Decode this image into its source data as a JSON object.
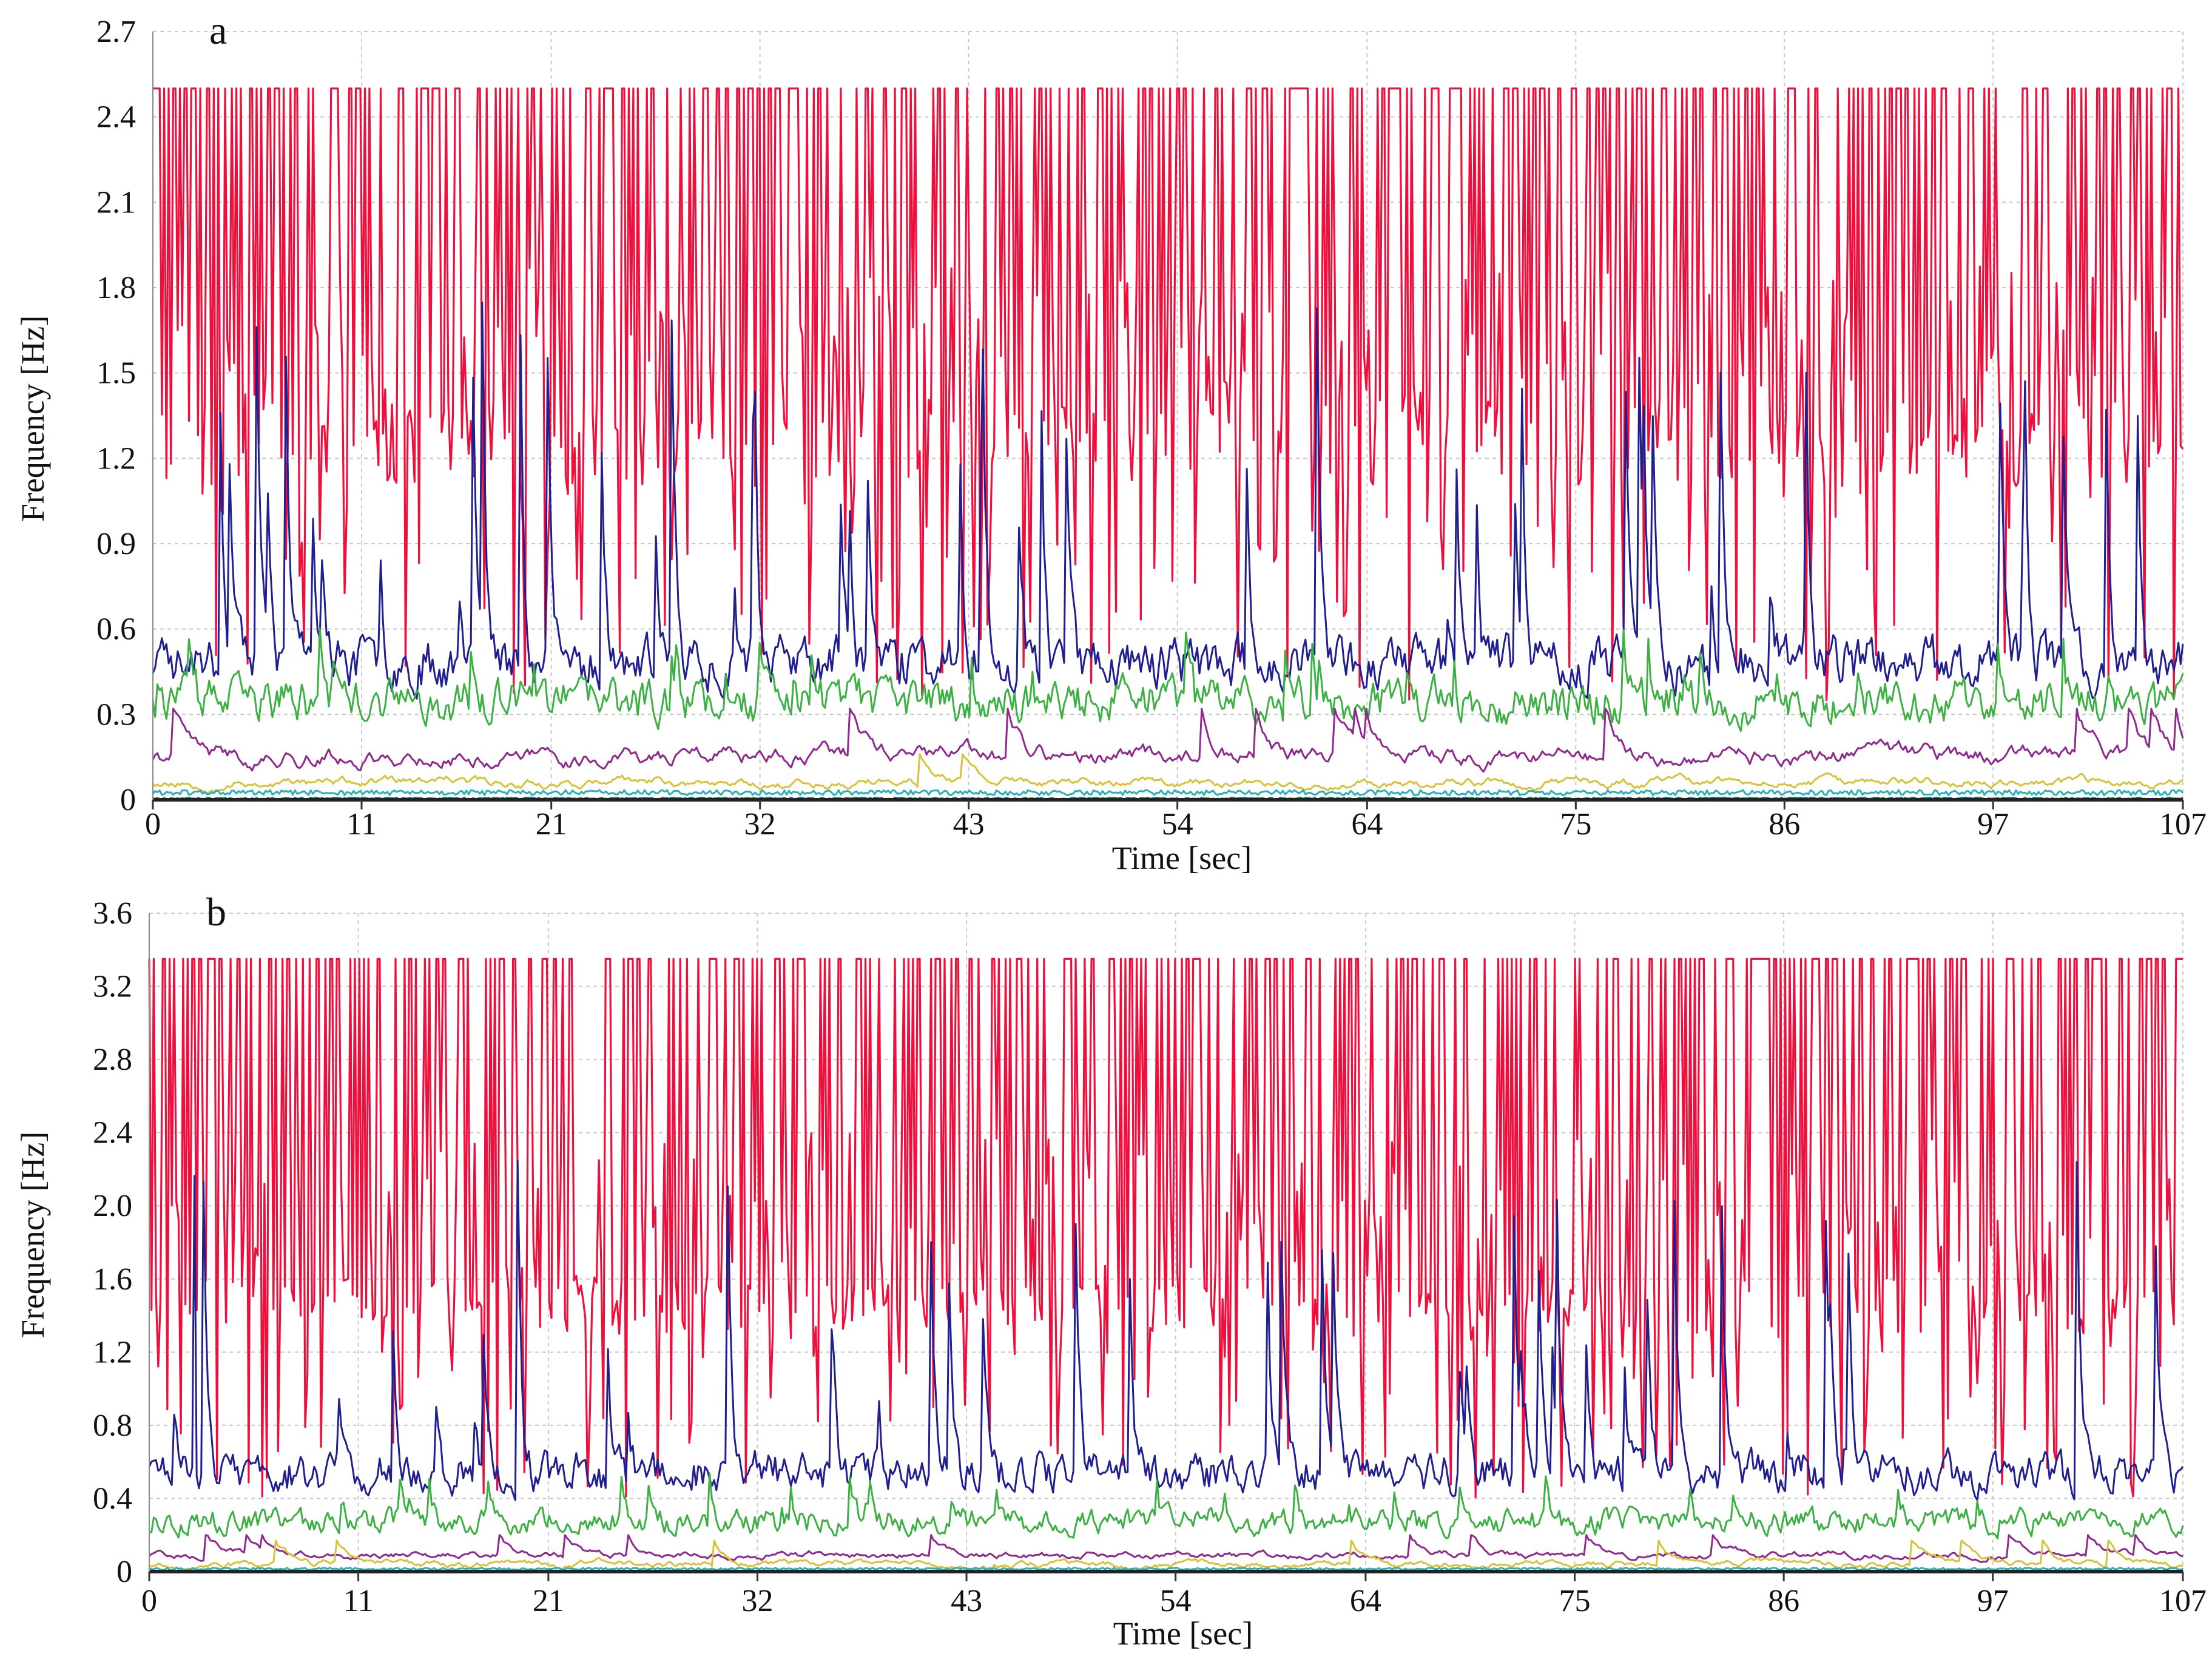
{
  "figure": {
    "panels": [
      "a",
      "b"
    ]
  },
  "chart_data": [
    {
      "panel_label": "a",
      "type": "line",
      "title": "",
      "xlabel": "Time [sec]",
      "ylabel": "Frequency [Hz]",
      "xlim": [
        0,
        107
      ],
      "ylim": [
        0,
        2.7
      ],
      "xticks": [
        "0",
        "11",
        "21",
        "32",
        "43",
        "54",
        "64",
        "75",
        "86",
        "97",
        "107"
      ],
      "yticks": [
        "0",
        "0.3",
        "0.6",
        "0.9",
        "1.2",
        "1.5",
        "1.8",
        "2.1",
        "2.4",
        "2.7"
      ],
      "grid": true,
      "legend": "none",
      "series": [
        {
          "name": "red",
          "color": "#ee0f3c",
          "baseline": 1.25,
          "cap": 2.5,
          "floor": 0.35,
          "style": "spikes",
          "seed": 11
        },
        {
          "name": "blue",
          "color": "#1f1f8f",
          "baseline": 0.45,
          "cap": 1.75,
          "floor": 0.25,
          "style": "noisy",
          "seed": 23
        },
        {
          "name": "green",
          "color": "#3cb043",
          "baseline": 0.32,
          "cap": 0.62,
          "floor": 0.15,
          "style": "noisy",
          "seed": 37
        },
        {
          "name": "purple",
          "color": "#8e2a8e",
          "baseline": 0.15,
          "cap": 0.32,
          "floor": 0.04,
          "style": "smooth",
          "seed": 41
        },
        {
          "name": "yellow",
          "color": "#d9c23a",
          "baseline": 0.06,
          "cap": 0.16,
          "floor": 0.01,
          "style": "smooth",
          "seed": 53
        },
        {
          "name": "cyan",
          "color": "#2ab0b8",
          "baseline": 0.025,
          "cap": 0.05,
          "floor": 0.005,
          "style": "flat",
          "seed": 61
        },
        {
          "name": "teal",
          "color": "#1a6f6f",
          "baseline": 0.005,
          "cap": 0.012,
          "floor": 0.0,
          "style": "flat",
          "seed": 67
        }
      ]
    },
    {
      "panel_label": "b",
      "type": "line",
      "title": "",
      "xlabel": "Time [sec]",
      "ylabel": "Frequency [Hz]",
      "xlim": [
        0,
        107
      ],
      "ylim": [
        0,
        3.6
      ],
      "ytick_values": [
        0,
        0.4,
        0.8,
        1.2,
        1.6,
        2.0,
        2.4,
        2.8,
        3.2,
        3.6
      ],
      "xticks": [
        "0",
        "11",
        "21",
        "32",
        "43",
        "54",
        "64",
        "75",
        "86",
        "97",
        "107"
      ],
      "yticks": [
        "0",
        "0.4",
        "0.8",
        "1.2",
        "1.6",
        "2.0",
        "2.4",
        "2.8",
        "3.2",
        "3.6"
      ],
      "grid": true,
      "legend": "none",
      "series": [
        {
          "name": "red",
          "color": "#ee0f3c",
          "baseline": 1.45,
          "cap": 3.35,
          "floor": 0.4,
          "style": "spikes",
          "seed": 71
        },
        {
          "name": "blue",
          "color": "#1f1f8f",
          "baseline": 0.5,
          "cap": 2.3,
          "floor": 0.25,
          "style": "noisy",
          "seed": 83
        },
        {
          "name": "green",
          "color": "#3cb043",
          "baseline": 0.25,
          "cap": 0.55,
          "floor": 0.1,
          "style": "noisy",
          "seed": 97
        },
        {
          "name": "purple",
          "color": "#8e2a8e",
          "baseline": 0.09,
          "cap": 0.2,
          "floor": 0.02,
          "style": "smooth",
          "seed": 101
        },
        {
          "name": "yellow",
          "color": "#d9c23a",
          "baseline": 0.04,
          "cap": 0.17,
          "floor": 0.0,
          "style": "smooth",
          "seed": 107
        },
        {
          "name": "cyan",
          "color": "#2ab0b8",
          "baseline": 0.015,
          "cap": 0.03,
          "floor": 0.0,
          "style": "flat",
          "seed": 113
        },
        {
          "name": "navy",
          "color": "#3a2a9a",
          "baseline": 0.004,
          "cap": 0.01,
          "floor": 0.0,
          "style": "flat",
          "seed": 127
        }
      ]
    }
  ]
}
